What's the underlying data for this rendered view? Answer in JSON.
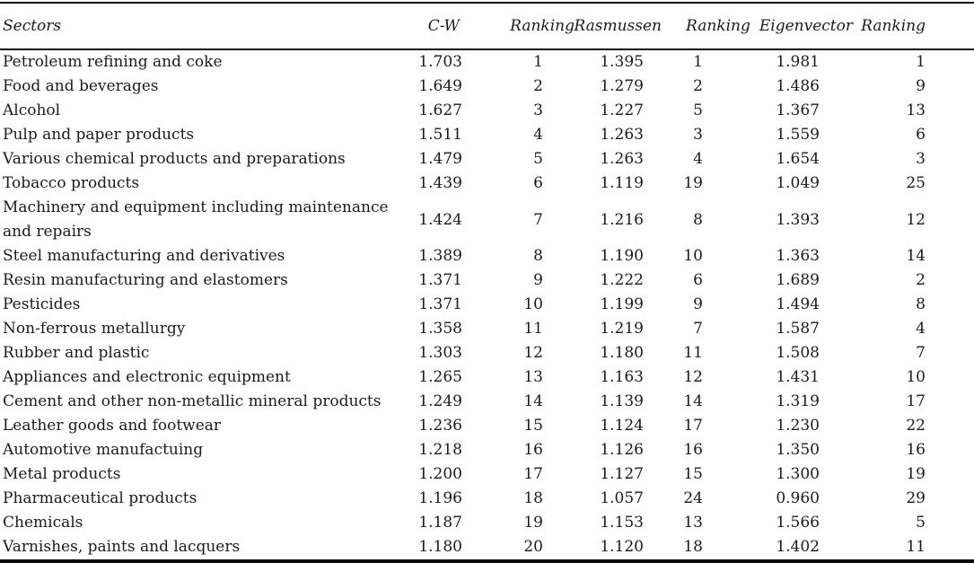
{
  "page": {
    "background_color": "#ffffff",
    "ink_color": "#1b1b1b",
    "rule_color": "#0a0a0a"
  },
  "table": {
    "columns": [
      "Sectors",
      "C-W",
      "Ranking",
      "Rasmussen",
      "Ranking",
      "Eigenvector",
      "Ranking"
    ],
    "rows": [
      {
        "sector": "Petroleum refining and coke",
        "cw": "1.703",
        "cw_rank": "1",
        "rasmussen": "1.395",
        "rasmussen_rank": "1",
        "eigenvector": "1.981",
        "eigenvector_rank": "1"
      },
      {
        "sector": "Food and beverages",
        "cw": "1.649",
        "cw_rank": "2",
        "rasmussen": "1.279",
        "rasmussen_rank": "2",
        "eigenvector": "1.486",
        "eigenvector_rank": "9"
      },
      {
        "sector": "Alcohol",
        "cw": "1.627",
        "cw_rank": "3",
        "rasmussen": "1.227",
        "rasmussen_rank": "5",
        "eigenvector": "1.367",
        "eigenvector_rank": "13"
      },
      {
        "sector": "Pulp and paper products",
        "cw": "1.511",
        "cw_rank": "4",
        "rasmussen": "1.263",
        "rasmussen_rank": "3",
        "eigenvector": "1.559",
        "eigenvector_rank": "6"
      },
      {
        "sector": "Various chemical products and preparations",
        "cw": "1.479",
        "cw_rank": "5",
        "rasmussen": "1.263",
        "rasmussen_rank": "4",
        "eigenvector": "1.654",
        "eigenvector_rank": "3"
      },
      {
        "sector": "Tobacco products",
        "cw": "1.439",
        "cw_rank": "6",
        "rasmussen": "1.119",
        "rasmussen_rank": "19",
        "eigenvector": "1.049",
        "eigenvector_rank": "25"
      },
      {
        "sector": "Machinery and equipment including maintenance and repairs",
        "cw": "1.424",
        "cw_rank": "7",
        "rasmussen": "1.216",
        "rasmussen_rank": "8",
        "eigenvector": "1.393",
        "eigenvector_rank": "12"
      },
      {
        "sector": "Steel manufacturing and derivatives",
        "cw": "1.389",
        "cw_rank": "8",
        "rasmussen": "1.190",
        "rasmussen_rank": "10",
        "eigenvector": "1.363",
        "eigenvector_rank": "14"
      },
      {
        "sector": "Resin manufacturing and elastomers",
        "cw": "1.371",
        "cw_rank": "9",
        "rasmussen": "1.222",
        "rasmussen_rank": "6",
        "eigenvector": "1.689",
        "eigenvector_rank": "2"
      },
      {
        "sector": "Pesticides",
        "cw": "1.371",
        "cw_rank": "10",
        "rasmussen": "1.199",
        "rasmussen_rank": "9",
        "eigenvector": "1.494",
        "eigenvector_rank": "8"
      },
      {
        "sector": "Non-ferrous metallurgy",
        "cw": "1.358",
        "cw_rank": "11",
        "rasmussen": "1.219",
        "rasmussen_rank": "7",
        "eigenvector": "1.587",
        "eigenvector_rank": "4"
      },
      {
        "sector": "Rubber and plastic",
        "cw": "1.303",
        "cw_rank": "12",
        "rasmussen": "1.180",
        "rasmussen_rank": "11",
        "eigenvector": "1.508",
        "eigenvector_rank": "7"
      },
      {
        "sector": "Appliances and electronic equipment",
        "cw": "1.265",
        "cw_rank": "13",
        "rasmussen": "1.163",
        "rasmussen_rank": "12",
        "eigenvector": "1.431",
        "eigenvector_rank": "10"
      },
      {
        "sector": "Cement and other non-metallic mineral products",
        "cw": "1.249",
        "cw_rank": "14",
        "rasmussen": "1.139",
        "rasmussen_rank": "14",
        "eigenvector": "1.319",
        "eigenvector_rank": "17"
      },
      {
        "sector": "Leather goods and footwear",
        "cw": "1.236",
        "cw_rank": "15",
        "rasmussen": "1.124",
        "rasmussen_rank": "17",
        "eigenvector": "1.230",
        "eigenvector_rank": "22"
      },
      {
        "sector": "Automotive manufactuing",
        "cw": "1.218",
        "cw_rank": "16",
        "rasmussen": "1.126",
        "rasmussen_rank": "16",
        "eigenvector": "1.350",
        "eigenvector_rank": "16"
      },
      {
        "sector": "Metal products",
        "cw": "1.200",
        "cw_rank": "17",
        "rasmussen": "1.127",
        "rasmussen_rank": "15",
        "eigenvector": "1.300",
        "eigenvector_rank": "19"
      },
      {
        "sector": "Pharmaceutical products",
        "cw": "1.196",
        "cw_rank": "18",
        "rasmussen": "1.057",
        "rasmussen_rank": "24",
        "eigenvector": "0.960",
        "eigenvector_rank": "29"
      },
      {
        "sector": "Chemicals",
        "cw": "1.187",
        "cw_rank": "19",
        "rasmussen": "1.153",
        "rasmussen_rank": "13",
        "eigenvector": "1.566",
        "eigenvector_rank": "5"
      },
      {
        "sector": "Varnishes, paints and lacquers",
        "cw": "1.180",
        "cw_rank": "20",
        "rasmussen": "1.120",
        "rasmussen_rank": "18",
        "eigenvector": "1.402",
        "eigenvector_rank": "11"
      }
    ]
  }
}
